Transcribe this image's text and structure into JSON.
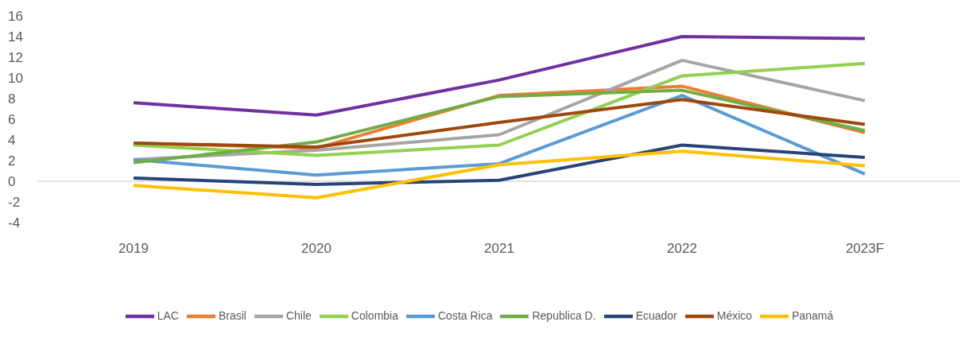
{
  "chart_data": {
    "type": "line",
    "categories": [
      "2019",
      "2020",
      "2021",
      "2022",
      "2023F"
    ],
    "series": [
      {
        "name": "LAC",
        "color": "#7030a0",
        "values": [
          7.6,
          6.4,
          9.8,
          14.0,
          13.8
        ]
      },
      {
        "name": "Brasil",
        "color": "#ed7d31",
        "values": [
          3.7,
          3.2,
          8.3,
          9.2,
          4.7
        ]
      },
      {
        "name": "Chile",
        "color": "#a5a5a5",
        "values": [
          2.1,
          3.0,
          4.5,
          11.7,
          7.8
        ]
      },
      {
        "name": "Colombia",
        "color": "#92d050",
        "values": [
          3.5,
          2.5,
          3.5,
          10.2,
          11.4
        ]
      },
      {
        "name": "Costa Rica",
        "color": "#5b9bd5",
        "values": [
          2.1,
          0.6,
          1.7,
          8.3,
          0.7
        ]
      },
      {
        "name": "Republica D.",
        "color": "#70ad47",
        "values": [
          1.8,
          3.8,
          8.2,
          8.8,
          4.9
        ]
      },
      {
        "name": "Ecuador",
        "color": "#264478",
        "values": [
          0.3,
          -0.3,
          0.1,
          3.5,
          2.3
        ]
      },
      {
        "name": "México",
        "color": "#9e480e",
        "values": [
          3.7,
          3.3,
          5.7,
          7.9,
          5.5
        ]
      },
      {
        "name": "Panamá",
        "color": "#ffc000",
        "values": [
          -0.4,
          -1.6,
          1.6,
          2.9,
          1.5
        ]
      }
    ],
    "ylim": [
      -4,
      16
    ],
    "yticks": [
      -4,
      -2,
      0,
      2,
      4,
      6,
      8,
      10,
      12,
      14,
      16
    ],
    "ref_lines": [
      {
        "axis": "y",
        "value": 0,
        "color": "#d9d9d9"
      }
    ],
    "grid": false,
    "legend": "bottom",
    "marker": "none",
    "line_style": "solid"
  }
}
